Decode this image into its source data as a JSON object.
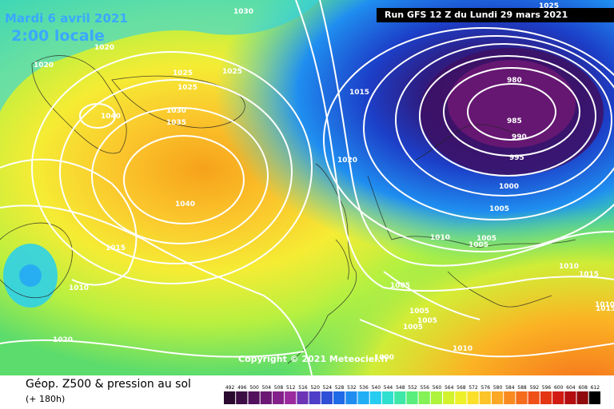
{
  "header": {
    "date": "Mardi 6 avril 2021",
    "time": "2:00 locale",
    "run": "Run GFS 12 Z du Lundi 29 mars 2021"
  },
  "copyright": "Copyright © 2021 Meteociel.fr",
  "footer": {
    "title": "Géop. Z500 & pression au sol",
    "subtitle": "(+ 180h)"
  },
  "isobars": [
    {
      "label": "1030"
    },
    {
      "label": "1020"
    },
    {
      "label": "1020"
    },
    {
      "label": "1025"
    },
    {
      "label": "1025"
    },
    {
      "label": "1025"
    },
    {
      "label": "1040"
    },
    {
      "label": "1030"
    },
    {
      "label": "1035"
    },
    {
      "label": "1040"
    },
    {
      "label": "1015"
    },
    {
      "label": "1010"
    },
    {
      "label": "1020"
    },
    {
      "label": "1015"
    },
    {
      "label": "1020"
    },
    {
      "label": "1025"
    },
    {
      "label": "980"
    },
    {
      "label": "985"
    },
    {
      "label": "990"
    },
    {
      "label": "995"
    },
    {
      "label": "1000"
    },
    {
      "label": "1005"
    },
    {
      "label": "1010"
    },
    {
      "label": "1005"
    },
    {
      "label": "1005"
    },
    {
      "label": "1005"
    },
    {
      "label": "1010"
    },
    {
      "label": "1015"
    },
    {
      "label": "1005"
    },
    {
      "label": "1005"
    },
    {
      "label": "1005"
    },
    {
      "label": "1000"
    },
    {
      "label": "1010"
    },
    {
      "label": "1015"
    },
    {
      "label": "1010"
    }
  ],
  "scale": {
    "labels": [
      "492",
      "496",
      "500",
      "504",
      "508",
      "512",
      "516",
      "520",
      "524",
      "528",
      "532",
      "536",
      "540",
      "544",
      "548",
      "552",
      "556",
      "560",
      "564",
      "568",
      "572",
      "576",
      "580",
      "584",
      "588",
      "592",
      "596",
      "600",
      "604",
      "608",
      "612"
    ],
    "colors": [
      "#2a0a2e",
      "#3d0d45",
      "#52115c",
      "#6a1873",
      "#84208a",
      "#9a2a9e",
      "#6b35b5",
      "#4d3fc7",
      "#2e4fd6",
      "#1f6ae6",
      "#1f8df0",
      "#22aef5",
      "#27ccf0",
      "#2fe0d0",
      "#3fe8a8",
      "#5aef7c",
      "#84f256",
      "#aef33c",
      "#d2f22e",
      "#eef02a",
      "#fbe02a",
      "#fcc428",
      "#fba824",
      "#f88a20",
      "#f46c1c",
      "#ee5018",
      "#e33414",
      "#d11b12",
      "#b40d10",
      "#8e0a0c",
      "#000000"
    ]
  }
}
